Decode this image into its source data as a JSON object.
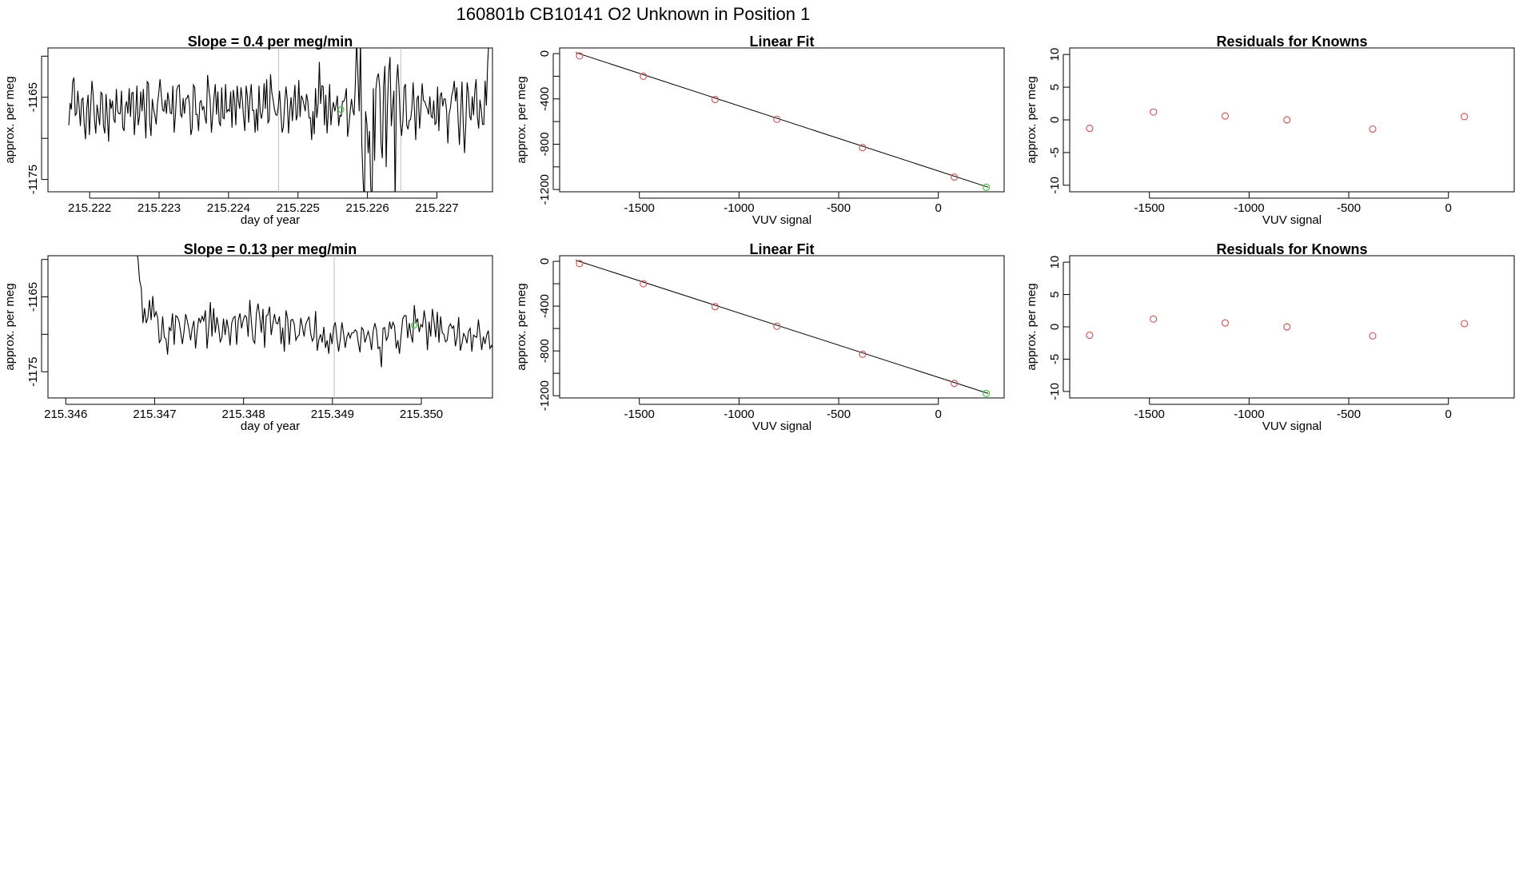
{
  "figure": {
    "title": "160801b      CB10141    O2 Unknown in Position  1"
  },
  "colors": {
    "trace": "#000000",
    "known_point": "#cd5c5c",
    "unknown_point": "#3cc83c",
    "fit_line": "#000000",
    "marker_vline": "#bebebe",
    "frame": "#000000"
  },
  "chart_data": [
    {
      "type": "line",
      "panel": "top-left",
      "title": "Slope =  0.4  per meg/min",
      "xlabel": "day of year",
      "ylabel": "approx. per meg",
      "xlim": [
        215.2214,
        215.2278
      ],
      "ylim": [
        -1176.5,
        -1159.0
      ],
      "xticks": [
        215.222,
        215.223,
        215.224,
        215.225,
        215.226,
        215.227
      ],
      "xtick_labels": [
        "215.222",
        "215.223",
        "215.224",
        "215.225",
        "215.226",
        "215.227"
      ],
      "yticks": [
        -1175,
        -1170,
        -1165,
        -1160
      ],
      "ytick_labels": [
        "-1175",
        "",
        "-1165",
        ""
      ],
      "vlines": [
        215.22472,
        215.22648
      ],
      "x_start": 215.2217,
      "x_step": 1.85e-05,
      "values": [
        -1168.4,
        -1165.7,
        -1166.5,
        -1163.1,
        -1162.6,
        -1167.2,
        -1167.0,
        -1164.2,
        -1166.1,
        -1168.5,
        -1165.3,
        -1165.1,
        -1168.3,
        -1170.1,
        -1166.3,
        -1164.7,
        -1169.6,
        -1166.3,
        -1163.0,
        -1164.7,
        -1167.8,
        -1169.4,
        -1165.9,
        -1167.1,
        -1168.4,
        -1164.4,
        -1164.6,
        -1168.5,
        -1169.4,
        -1164.6,
        -1167.4,
        -1170.4,
        -1165.2,
        -1166.4,
        -1165.4,
        -1167.7,
        -1168.1,
        -1164.0,
        -1166.7,
        -1167.0,
        -1167.0,
        -1164.2,
        -1168.7,
        -1169.1,
        -1166.1,
        -1165.5,
        -1167.0,
        -1163.9,
        -1167.4,
        -1164.5,
        -1164.4,
        -1169.6,
        -1167.1,
        -1163.6,
        -1168.4,
        -1167.4,
        -1164.3,
        -1166.7,
        -1164.0,
        -1166.9,
        -1170.0,
        -1163.1,
        -1163.3,
        -1168.1,
        -1169.7,
        -1165.2,
        -1166.5,
        -1167.2,
        -1168.3,
        -1165.8,
        -1164.5,
        -1162.8,
        -1164.7,
        -1166.5,
        -1166.7,
        -1165.3,
        -1167.0,
        -1164.4,
        -1165.5,
        -1166.9,
        -1167.0,
        -1163.6,
        -1169.3,
        -1167.2,
        -1164.1,
        -1163.6,
        -1163.5,
        -1167.1,
        -1167.4,
        -1165.1,
        -1167.0,
        -1165.2,
        -1165.1,
        -1164.7,
        -1166.0,
        -1169.6,
        -1168.8,
        -1163.5,
        -1163.8,
        -1167.1,
        -1167.1,
        -1169.1,
        -1165.6,
        -1165.4,
        -1166.5,
        -1166.1,
        -1167.4,
        -1168.2,
        -1162.3,
        -1164.0,
        -1165.4,
        -1169.3,
        -1167.2,
        -1165.0,
        -1163.4,
        -1167.1,
        -1164.3,
        -1168.0,
        -1168.5,
        -1163.8,
        -1167.5,
        -1167.6,
        -1163.4,
        -1166.8,
        -1166.5,
        -1166.7,
        -1164.3,
        -1168.7,
        -1164.1,
        -1165.3,
        -1168.4,
        -1163.6,
        -1165.4,
        -1166.4,
        -1163.8,
        -1165.2,
        -1167.4,
        -1169.1,
        -1163.6,
        -1164.9,
        -1168.1,
        -1165.0,
        -1163.4,
        -1166.6,
        -1166.6,
        -1169.3,
        -1166.4,
        -1169.1,
        -1163.6,
        -1166.9,
        -1167.6,
        -1166.5,
        -1163.3,
        -1166.4,
        -1162.8,
        -1168.1,
        -1167.8,
        -1162.2,
        -1164.4,
        -1165.3,
        -1166.4,
        -1167.1,
        -1167.2,
        -1166.2,
        -1164.2,
        -1166.8,
        -1169.3,
        -1168.6,
        -1165.8,
        -1163.7,
        -1165.2,
        -1169.4,
        -1166.6,
        -1165.0,
        -1167.9,
        -1165.5,
        -1163.5,
        -1167.8,
        -1167.1,
        -1162.9,
        -1167.4,
        -1164.8,
        -1165.2,
        -1165.9,
        -1166.7,
        -1164.6,
        -1165.5,
        -1167.5,
        -1167.5,
        -1170.2,
        -1166.7,
        -1169.5,
        -1163.9,
        -1167.5,
        -1166.0,
        -1160.7,
        -1165.8,
        -1163.6,
        -1163.7,
        -1168.4,
        -1164.7,
        -1169.4,
        -1166.7,
        -1163.4,
        -1168.4,
        -1166.5,
        -1165.6,
        -1166.7,
        -1166.0,
        -1164.8,
        -1168.5,
        -1167.2,
        -1167.3,
        -1165.5,
        -1165.5,
        -1165.1,
        -1163.9,
        -1169.8,
        -1168.4,
        -1166.7,
        -1165.2,
        -1166.5,
        -1167.2,
        -1163.3,
        -1158.0,
        -1162.3,
        -1166.7,
        -1158.0,
        -1170.5,
        -1175.0,
        -1178.0,
        -1166.7,
        -1168.2,
        -1171.8,
        -1169.1,
        -1176.0,
        -1178.0,
        -1163.9,
        -1172.7,
        -1164.0,
        -1162.6,
        -1162.1,
        -1163.9,
        -1170.7,
        -1172.4,
        -1163.6,
        -1161.2,
        -1173.5,
        -1166.0,
        -1161.9,
        -1160.1,
        -1168.5,
        -1166.2,
        -1164.2,
        -1178.0,
        -1163.4,
        -1161.0,
        -1163.9,
        -1168.0,
        -1169.7,
        -1167.8,
        -1163.8,
        -1163.4,
        -1168.4,
        -1168.9,
        -1167.8,
        -1167.7,
        -1166.3,
        -1163.2,
        -1166.6,
        -1170.2,
        -1165.2,
        -1164.8,
        -1168.8,
        -1166.5,
        -1163.3,
        -1165.4,
        -1165.5,
        -1166.0,
        -1166.4,
        -1167.1,
        -1164.9,
        -1167.3,
        -1167.5,
        -1165.4,
        -1168.3,
        -1168.1,
        -1163.7,
        -1169.1,
        -1164.9,
        -1164.4,
        -1166.1,
        -1165.2,
        -1165.2,
        -1166.6,
        -1170.6,
        -1167.0,
        -1166.3,
        -1164.8,
        -1164.2,
        -1163.0,
        -1165.5,
        -1163.8,
        -1167.8,
        -1170.8,
        -1166.7,
        -1163.1,
        -1168.4,
        -1171.8,
        -1168.2,
        -1163.2,
        -1164.4,
        -1167.3,
        -1167.8,
        -1164.9,
        -1167.2,
        -1164.2,
        -1162.8,
        -1167.4,
        -1168.8,
        -1165.3,
        -1166.5,
        -1168.3,
        -1168.3,
        -1163.0,
        -1166.0,
        -1160.8,
        -1158.0
      ]
    },
    {
      "type": "scatter",
      "panel": "top-middle",
      "title": "Linear Fit",
      "xlabel": "VUV signal",
      "ylabel": "approx. per meg",
      "xlim": [
        -1900,
        330
      ],
      "ylim": [
        -1220,
        50
      ],
      "xticks": [
        -1500,
        -1000,
        -500,
        0
      ],
      "xtick_labels": [
        "-1500",
        "-1000",
        "-500",
        "0"
      ],
      "yticks": [
        0,
        -200,
        -400,
        -600,
        -800,
        -1000,
        -1200
      ],
      "ytick_labels": [
        "0",
        "",
        "-400",
        "",
        "-800",
        "",
        "-1200"
      ],
      "fit_line": {
        "x": [
          -1820,
          250
        ],
        "y": [
          10,
          -1180
        ]
      },
      "knowns": {
        "x": [
          -1800,
          -1480,
          -1120,
          -810,
          -380,
          80
        ],
        "y": [
          -20,
          -200,
          -405,
          -580,
          -830,
          -1090
        ]
      },
      "unknown": {
        "x": [
          240
        ],
        "y": [
          -1180
        ]
      }
    },
    {
      "type": "scatter",
      "panel": "top-right",
      "title": "Residuals for Knowns",
      "xlabel": "VUV signal",
      "ylabel": "approx. per meg",
      "xlim": [
        -1900,
        330
      ],
      "ylim": [
        -11,
        11
      ],
      "xticks": [
        -1500,
        -1000,
        -500,
        0
      ],
      "xtick_labels": [
        "-1500",
        "-1000",
        "-500",
        "0"
      ],
      "yticks": [
        10,
        5,
        0,
        -5,
        -10
      ],
      "ytick_labels": [
        "10",
        "5",
        "0",
        "-5",
        "-10"
      ],
      "knowns": {
        "x": [
          -1800,
          -1480,
          -1120,
          -810,
          -380,
          80
        ],
        "y": [
          -1.3,
          1.2,
          0.6,
          0.0,
          -1.4,
          0.5
        ]
      }
    },
    {
      "type": "line",
      "panel": "bottom-left",
      "title": "Slope =  0.13  per meg/min",
      "xlabel": "day of year",
      "ylabel": "approx. per meg",
      "xlim": [
        215.3458,
        215.3508
      ],
      "ylim": [
        -1178.5,
        -1159.5
      ],
      "xticks": [
        215.346,
        215.347,
        215.348,
        215.349,
        215.35
      ],
      "xtick_labels": [
        "215.346",
        "215.347",
        "215.348",
        "215.349",
        "215.350"
      ],
      "yticks": [
        -1175,
        -1170,
        -1165,
        -1160
      ],
      "ytick_labels": [
        "-1175",
        "",
        "-1165",
        ""
      ],
      "vlines": [
        215.34902,
        215.35082
      ],
      "x_start": 215.34672,
      "x_step": 1.85e-05,
      "values": [
        -1158.0,
        -1158.0,
        -1159.4,
        -1158.0,
        -1158.8,
        -1159.9,
        -1162.8,
        -1163.8,
        -1168.5,
        -1166.5,
        -1168.5,
        -1167.8,
        -1165.4,
        -1168.1,
        -1164.9,
        -1167.7,
        -1167.0,
        -1167.8,
        -1171.1,
        -1170.7,
        -1167.6,
        -1170.4,
        -1170.6,
        -1172.7,
        -1169.1,
        -1169.5,
        -1167.2,
        -1171.4,
        -1167.5,
        -1167.7,
        -1168.3,
        -1169.8,
        -1171.3,
        -1169.6,
        -1167.3,
        -1168.2,
        -1169.3,
        -1170.8,
        -1169.1,
        -1168.2,
        -1171.9,
        -1169.5,
        -1167.8,
        -1168.4,
        -1167.6,
        -1168.2,
        -1166.8,
        -1171.9,
        -1169.2,
        -1165.7,
        -1170.3,
        -1166.5,
        -1169.8,
        -1167.7,
        -1169.0,
        -1171.0,
        -1170.5,
        -1167.9,
        -1170.1,
        -1168.0,
        -1169.3,
        -1171.5,
        -1168.5,
        -1167.8,
        -1167.6,
        -1171.4,
        -1168.1,
        -1167.2,
        -1169.2,
        -1168.1,
        -1167.5,
        -1167.7,
        -1170.3,
        -1165.4,
        -1168.5,
        -1170.8,
        -1171.2,
        -1167.2,
        -1165.9,
        -1167.6,
        -1169.8,
        -1166.6,
        -1171.8,
        -1167.5,
        -1167.4,
        -1166.3,
        -1170.1,
        -1168.6,
        -1167.3,
        -1168.5,
        -1168.6,
        -1167.6,
        -1171.3,
        -1169.1,
        -1172.3,
        -1166.8,
        -1167.9,
        -1171.4,
        -1168.1,
        -1168.0,
        -1168.6,
        -1170.8,
        -1170.3,
        -1170.1,
        -1167.8,
        -1169.0,
        -1170.3,
        -1168.7,
        -1168.1,
        -1167.7,
        -1169.9,
        -1170.9,
        -1170.4,
        -1166.9,
        -1172.2,
        -1170.7,
        -1170.0,
        -1171.1,
        -1169.0,
        -1171.8,
        -1170.8,
        -1172.6,
        -1169.8,
        -1171.3,
        -1169.0,
        -1168.4,
        -1170.6,
        -1172.3,
        -1170.7,
        -1168.4,
        -1169.9,
        -1171.8,
        -1170.4,
        -1169.8,
        -1170.5,
        -1169.8,
        -1169.8,
        -1169.4,
        -1169.6,
        -1171.2,
        -1172.4,
        -1169.1,
        -1169.4,
        -1171.1,
        -1170.3,
        -1169.6,
        -1170.5,
        -1172.1,
        -1169.6,
        -1168.5,
        -1169.4,
        -1171.9,
        -1171.7,
        -1174.4,
        -1169.2,
        -1169.1,
        -1170.8,
        -1170.3,
        -1168.3,
        -1169.3,
        -1168.4,
        -1168.9,
        -1171.9,
        -1170.8,
        -1172.6,
        -1170.1,
        -1167.9,
        -1167.5,
        -1167.5,
        -1170.5,
        -1168.5,
        -1170.1,
        -1171.1,
        -1166.1,
        -1168.5,
        -1167.9,
        -1169.7,
        -1168.7,
        -1169.0,
        -1166.8,
        -1168.4,
        -1172.1,
        -1168.3,
        -1170.3,
        -1166.6,
        -1168.3,
        -1170.4,
        -1167.0,
        -1171.1,
        -1167.6,
        -1169.8,
        -1170.0,
        -1171.0,
        -1170.8,
        -1169.0,
        -1168.6,
        -1169.2,
        -1168.9,
        -1171.6,
        -1170.4,
        -1167.7,
        -1172.2,
        -1171.2,
        -1169.9,
        -1170.3,
        -1171.2,
        -1169.6,
        -1169.2,
        -1172.3,
        -1170.1,
        -1170.3,
        -1170.4,
        -1168.0,
        -1170.1,
        -1172.1,
        -1170.3,
        -1171.3,
        -1170.1,
        -1169.5,
        -1171.9,
        -1171.5,
        -1172.0
      ]
    }
  ],
  "markers": [
    {
      "panel": 0,
      "kind": "unknown",
      "x": 215.22562,
      "y": -1166.5
    },
    {
      "panel": 3,
      "kind": "unknown",
      "x": 215.34992,
      "y": -1168.8
    }
  ]
}
